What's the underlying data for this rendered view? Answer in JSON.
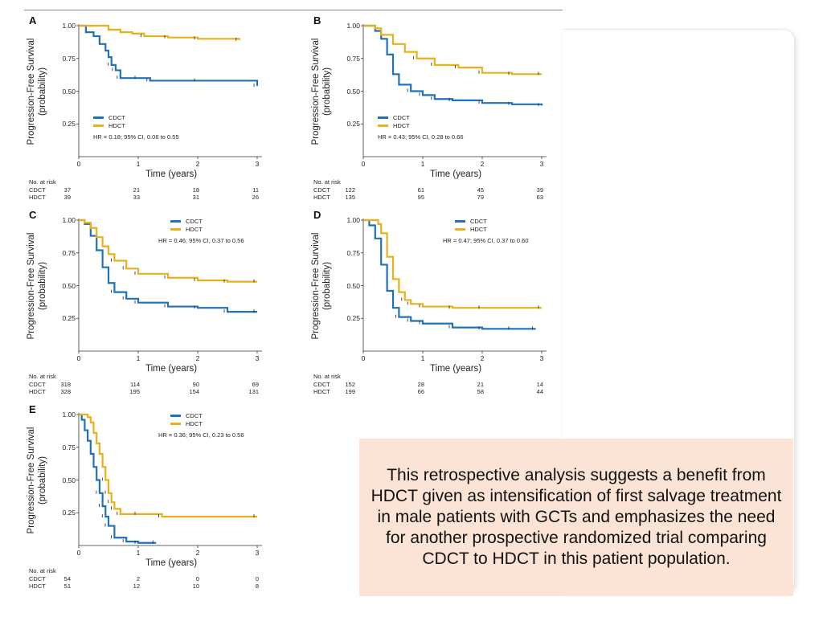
{
  "colors": {
    "cdct": "#1f72b8",
    "hdct": "#e8b11c",
    "axis": "#333333",
    "callout_bg": "#fbe4d5"
  },
  "shared": {
    "ylabel_line1": "Progression-Free Survival",
    "ylabel_line2": "(probability)",
    "xlabel": "Time (years)",
    "yticks": [
      "1.00",
      "0.75",
      "0.50",
      "0.25"
    ],
    "xticks": [
      "0",
      "1",
      "2",
      "3"
    ],
    "risk_title": "No. at risk",
    "cdct_label": "CDCT",
    "hdct_label": "HDCT"
  },
  "chart_data": [
    {
      "type": "line",
      "panel": "A",
      "title": "",
      "xlabel": "Time (years)",
      "ylabel": "Progression-Free Survival (probability)",
      "xlim": [
        0,
        3
      ],
      "ylim": [
        0,
        1
      ],
      "hr_text": "HR = 0.18; 95% CI, 0.06 to 0.55",
      "legend_position": "bottom-left",
      "series": [
        {
          "name": "CDCT",
          "x": [
            0,
            0.12,
            0.25,
            0.35,
            0.45,
            0.5,
            0.55,
            0.62,
            0.7,
            1.0,
            1.2,
            2.0,
            3.0
          ],
          "y": [
            1,
            0.95,
            0.92,
            0.86,
            0.81,
            0.76,
            0.7,
            0.66,
            0.6,
            0.6,
            0.58,
            0.58,
            0.54
          ]
        },
        {
          "name": "HDCT",
          "x": [
            0,
            0.5,
            0.7,
            0.9,
            1.1,
            1.5,
            2.0,
            2.7
          ],
          "y": [
            1,
            0.97,
            0.95,
            0.94,
            0.92,
            0.91,
            0.9,
            0.89
          ]
        }
      ],
      "risk": {
        "CDCT": [
          "37",
          "21",
          "18",
          "11"
        ],
        "HDCT": [
          "39",
          "33",
          "31",
          "26"
        ]
      }
    },
    {
      "type": "line",
      "panel": "B",
      "title": "",
      "xlabel": "Time (years)",
      "ylabel": "Progression-Free Survival (probability)",
      "xlim": [
        0,
        3
      ],
      "ylim": [
        0,
        1
      ],
      "hr_text": "HR = 0.43; 95% CI, 0.28 to 0.66",
      "legend_position": "bottom-left",
      "series": [
        {
          "name": "CDCT",
          "x": [
            0,
            0.2,
            0.3,
            0.4,
            0.5,
            0.6,
            0.8,
            1.0,
            1.2,
            1.5,
            2.0,
            2.5,
            3.0
          ],
          "y": [
            1,
            0.96,
            0.9,
            0.78,
            0.63,
            0.55,
            0.5,
            0.47,
            0.44,
            0.43,
            0.41,
            0.4,
            0.39
          ]
        },
        {
          "name": "HDCT",
          "x": [
            0,
            0.2,
            0.3,
            0.5,
            0.7,
            0.9,
            1.2,
            1.6,
            2.0,
            2.5,
            3.0
          ],
          "y": [
            1,
            0.98,
            0.93,
            0.86,
            0.8,
            0.75,
            0.7,
            0.68,
            0.64,
            0.63,
            0.63
          ]
        }
      ],
      "risk": {
        "CDCT": [
          "122",
          "61",
          "45",
          "39"
        ],
        "HDCT": [
          "135",
          "95",
          "79",
          "63"
        ]
      }
    },
    {
      "type": "line",
      "panel": "C",
      "title": "",
      "xlabel": "Time (years)",
      "ylabel": "Progression-Free Survival (probability)",
      "xlim": [
        0,
        3
      ],
      "ylim": [
        0,
        1
      ],
      "hr_text": "HR = 0.46; 95% CI, 0.37 to 0.56",
      "legend_position": "top-right",
      "series": [
        {
          "name": "CDCT",
          "x": [
            0,
            0.1,
            0.2,
            0.3,
            0.4,
            0.5,
            0.6,
            0.8,
            1.0,
            1.5,
            2.0,
            2.5,
            3.0
          ],
          "y": [
            1,
            0.97,
            0.88,
            0.77,
            0.64,
            0.52,
            0.45,
            0.4,
            0.37,
            0.34,
            0.33,
            0.3,
            0.3
          ]
        },
        {
          "name": "HDCT",
          "x": [
            0,
            0.1,
            0.2,
            0.3,
            0.4,
            0.5,
            0.6,
            0.8,
            1.0,
            1.5,
            2.0,
            2.5,
            3.0
          ],
          "y": [
            1,
            0.98,
            0.94,
            0.87,
            0.8,
            0.74,
            0.69,
            0.63,
            0.59,
            0.56,
            0.54,
            0.53,
            0.53
          ]
        }
      ],
      "risk": {
        "CDCT": [
          "318",
          "114",
          "90",
          "69"
        ],
        "HDCT": [
          "328",
          "195",
          "154",
          "131"
        ]
      }
    },
    {
      "type": "line",
      "panel": "D",
      "title": "",
      "xlabel": "Time (years)",
      "ylabel": "Progression-Free Survival (probability)",
      "xlim": [
        0,
        3
      ],
      "ylim": [
        0,
        1
      ],
      "hr_text": "HR = 0.47; 95% CI, 0.37 to 0.60",
      "legend_position": "top-right",
      "series": [
        {
          "name": "CDCT",
          "x": [
            0,
            0.1,
            0.2,
            0.3,
            0.4,
            0.5,
            0.6,
            0.8,
            1.0,
            1.5,
            2.0,
            2.5,
            2.9
          ],
          "y": [
            1,
            0.96,
            0.86,
            0.66,
            0.46,
            0.33,
            0.26,
            0.23,
            0.21,
            0.18,
            0.17,
            0.17,
            0.17
          ]
        },
        {
          "name": "HDCT",
          "x": [
            0,
            0.25,
            0.3,
            0.4,
            0.5,
            0.6,
            0.7,
            0.8,
            1.0,
            1.5,
            2.0,
            3.0
          ],
          "y": [
            1,
            0.97,
            0.9,
            0.72,
            0.55,
            0.45,
            0.39,
            0.36,
            0.34,
            0.33,
            0.33,
            0.33
          ]
        }
      ],
      "risk": {
        "CDCT": [
          "152",
          "28",
          "21",
          "14"
        ],
        "HDCT": [
          "199",
          "66",
          "58",
          "44"
        ]
      }
    },
    {
      "type": "line",
      "panel": "E",
      "title": "",
      "xlabel": "Time (years)",
      "ylabel": "Progression-Free Survival (probability)",
      "xlim": [
        0,
        3
      ],
      "ylim": [
        0,
        1
      ],
      "hr_text": "HR = 0.36; 95% CI, 0.23 to 0.56",
      "legend_position": "top-right",
      "series": [
        {
          "name": "CDCT",
          "x": [
            0,
            0.05,
            0.1,
            0.15,
            0.2,
            0.25,
            0.3,
            0.35,
            0.4,
            0.45,
            0.5,
            0.6,
            0.8,
            1.0,
            1.3
          ],
          "y": [
            1,
            0.96,
            0.88,
            0.8,
            0.7,
            0.6,
            0.5,
            0.4,
            0.3,
            0.22,
            0.15,
            0.06,
            0.03,
            0.02,
            0.02
          ]
        },
        {
          "name": "HDCT",
          "x": [
            0,
            0.15,
            0.2,
            0.25,
            0.3,
            0.35,
            0.4,
            0.45,
            0.5,
            0.55,
            0.6,
            0.7,
            1.0,
            1.4,
            3.0
          ],
          "y": [
            1,
            0.98,
            0.94,
            0.86,
            0.78,
            0.7,
            0.6,
            0.5,
            0.4,
            0.33,
            0.28,
            0.24,
            0.24,
            0.22,
            0.22
          ]
        }
      ],
      "risk": {
        "CDCT": [
          "54",
          "2",
          "0",
          "0"
        ],
        "HDCT": [
          "51",
          "12",
          "10",
          "8"
        ]
      }
    }
  ],
  "callout_text": "This retrospective analysis suggests a benefit from HDCT given as intensification of first salvage treatment in male patients with GCTs and emphasizes the need for another prospective randomized trial comparing CDCT to HDCT in this patient population."
}
